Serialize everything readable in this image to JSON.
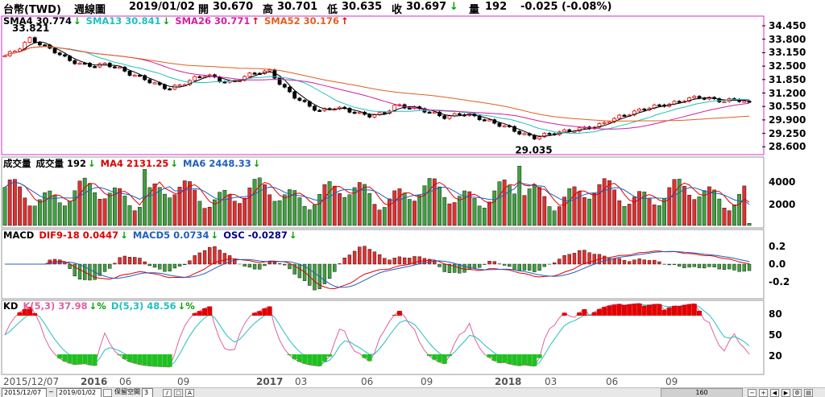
{
  "header": {
    "symbol": "台幣(TWD)",
    "period": "週線圖",
    "date": "2019/01/02",
    "open_label": "開",
    "open": "30.670",
    "high_label": "高",
    "high": "30.701",
    "low_label": "低",
    "low": "30.635",
    "close_label": "收",
    "close": "30.697",
    "volume_label": "量",
    "volume": "192",
    "change": "-0.025 (-0.08%)",
    "arrow": "↓"
  },
  "price_panel": {
    "legend": [
      {
        "label": "SMA4 30.774",
        "color": "#000000",
        "arrow": "↓",
        "dir": "dn"
      },
      {
        "label": "SMA13 30.841",
        "color": "#20c0c0",
        "arrow": "↓",
        "dir": "dn"
      },
      {
        "label": "SMA26 30.771",
        "color": "#d020a0",
        "arrow": "↑",
        "dir": "up"
      },
      {
        "label": "SMA52 30.176",
        "color": "#e06020",
        "arrow": "↑",
        "dir": "up"
      }
    ],
    "y_ticks": [
      "34.450",
      "33.800",
      "33.150",
      "32.500",
      "31.850",
      "31.200",
      "30.550",
      "29.900",
      "29.250",
      "28.600"
    ],
    "high_annotation": "33.821",
    "low_annotation": "29.035"
  },
  "volume_panel": {
    "legend": [
      {
        "label": "成交量",
        "color": "#000000"
      },
      {
        "label": "成交量 192",
        "color": "#000000",
        "arrow": "↓",
        "dir": "dn"
      },
      {
        "label": "MA4 2131.25",
        "color": "#e00000",
        "arrow": "↓",
        "dir": "dn"
      },
      {
        "label": "MA6 2448.33",
        "color": "#2060c0",
        "arrow": "↓",
        "dir": "dn"
      }
    ],
    "y_ticks": [
      "4000",
      "2000"
    ]
  },
  "macd_panel": {
    "legend": [
      {
        "label": "MACD",
        "color": "#000000"
      },
      {
        "label": "DIF9-18 0.0447",
        "color": "#e00000",
        "arrow": "↓",
        "dir": "dn"
      },
      {
        "label": "MACD5 0.0734",
        "color": "#2060c0",
        "arrow": "↓",
        "dir": "dn"
      },
      {
        "label": "OSC -0.0287",
        "color": "#000080",
        "arrow": "↓",
        "dir": "dn"
      }
    ],
    "y_ticks": [
      "0.2",
      "0.0",
      "-0.2"
    ]
  },
  "kd_panel": {
    "legend": [
      {
        "label": "KD",
        "color": "#000000"
      },
      {
        "label": "K(5,3) 37.98",
        "color": "#e060a0",
        "arrow": "↓",
        "dir": "dn",
        "suffix": "%"
      },
      {
        "label": "D(5,3) 48.56",
        "color": "#20c0c0",
        "arrow": "↓",
        "dir": "dn",
        "suffix": "%"
      }
    ],
    "y_ticks": [
      "80",
      "50",
      "20"
    ]
  },
  "x_axis": [
    "2015/12/07",
    "2016",
    "06",
    "09",
    "2017",
    "03",
    "06",
    "09",
    "2018",
    "03",
    "06",
    "09"
  ],
  "toolbar": {
    "start_date": "2015/12/07",
    "tilde": "~",
    "end_date": "2019/01/02",
    "keep_space_label": "保留空間",
    "keep_space_value": "3",
    "zoom_value": "160"
  },
  "colors": {
    "up": "#e00000",
    "down": "#40a040",
    "panel_border": "#d030d0"
  },
  "chart_data": {
    "type": "line",
    "title": "台幣(TWD) 週線圖",
    "x_start": "2015/12/07",
    "x_end": "2019/01/02",
    "ylim": [
      28.6,
      34.45
    ],
    "close_series_approx": [
      33.0,
      33.3,
      33.821,
      33.5,
      33.2,
      32.8,
      32.6,
      32.5,
      32.6,
      32.4,
      32.1,
      31.9,
      31.6,
      31.4,
      31.6,
      31.9,
      32.1,
      31.8,
      31.7,
      32.0,
      32.2,
      32.25,
      31.5,
      31.0,
      30.6,
      30.3,
      30.5,
      30.4,
      30.2,
      30.1,
      30.2,
      30.6,
      30.5,
      30.4,
      30.2,
      30.0,
      30.2,
      30.1,
      29.9,
      29.7,
      29.5,
      29.2,
      29.035,
      29.2,
      29.3,
      29.4,
      29.5,
      29.6,
      29.9,
      30.1,
      30.3,
      30.5,
      30.6,
      30.7,
      30.9,
      31.0,
      30.9,
      30.8,
      30.9,
      30.697
    ]
  }
}
